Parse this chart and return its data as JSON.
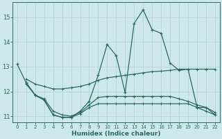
{
  "xlabel": "Humidex (Indice chaleur)",
  "background_color": "#cde8e8",
  "grid_color": "#b8d8d8",
  "line_color": "#2a6b60",
  "xlim": [
    -0.5,
    22.5
  ],
  "ylim": [
    10.75,
    15.6
  ],
  "yticks": [
    11,
    12,
    13,
    14,
    15
  ],
  "xticks": [
    0,
    1,
    2,
    3,
    4,
    5,
    6,
    7,
    8,
    9,
    10,
    11,
    12,
    13,
    14,
    15,
    16,
    17,
    18,
    19,
    20,
    21,
    22
  ],
  "line1_x": [
    0,
    1,
    2,
    3,
    4,
    5,
    6,
    7,
    8,
    9,
    10,
    11,
    12,
    13,
    14,
    15,
    16,
    17,
    18,
    19,
    20,
    21,
    22
  ],
  "line1_y": [
    13.1,
    12.35,
    11.85,
    11.65,
    11.05,
    10.95,
    10.95,
    11.2,
    11.6,
    12.65,
    13.9,
    13.45,
    11.95,
    14.75,
    15.3,
    14.5,
    14.35,
    13.15,
    12.85,
    12.9,
    11.35,
    11.35,
    11.05
  ],
  "line2_x": [
    1,
    2,
    3,
    4,
    5,
    6,
    7,
    8,
    9,
    10,
    11,
    12,
    13,
    14,
    15,
    16,
    17,
    18,
    19,
    20,
    21,
    22
  ],
  "line2_y": [
    12.5,
    12.3,
    12.2,
    12.1,
    12.1,
    12.15,
    12.2,
    12.3,
    12.45,
    12.55,
    12.6,
    12.65,
    12.7,
    12.75,
    12.8,
    12.82,
    12.85,
    12.9,
    12.9,
    12.9,
    12.9,
    12.9
  ],
  "line3_x": [
    1,
    2,
    3,
    4,
    5,
    6,
    7,
    8,
    9,
    10,
    11,
    12,
    13,
    14,
    15,
    16,
    17,
    18,
    19,
    20,
    21,
    22
  ],
  "line3_y": [
    12.3,
    11.85,
    11.65,
    11.05,
    10.95,
    10.95,
    11.1,
    11.35,
    11.5,
    11.5,
    11.5,
    11.5,
    11.5,
    11.5,
    11.5,
    11.5,
    11.5,
    11.5,
    11.5,
    11.35,
    11.2,
    11.05
  ],
  "line4_x": [
    1,
    2,
    3,
    4,
    5,
    6,
    7,
    8,
    9,
    10,
    11,
    12,
    13,
    14,
    15,
    16,
    17,
    18,
    19,
    20,
    21,
    22
  ],
  "line4_y": [
    12.35,
    11.85,
    11.7,
    11.2,
    11.05,
    11.0,
    11.15,
    11.45,
    11.75,
    11.8,
    11.8,
    11.8,
    11.8,
    11.8,
    11.8,
    11.8,
    11.8,
    11.7,
    11.6,
    11.45,
    11.35,
    11.15
  ]
}
